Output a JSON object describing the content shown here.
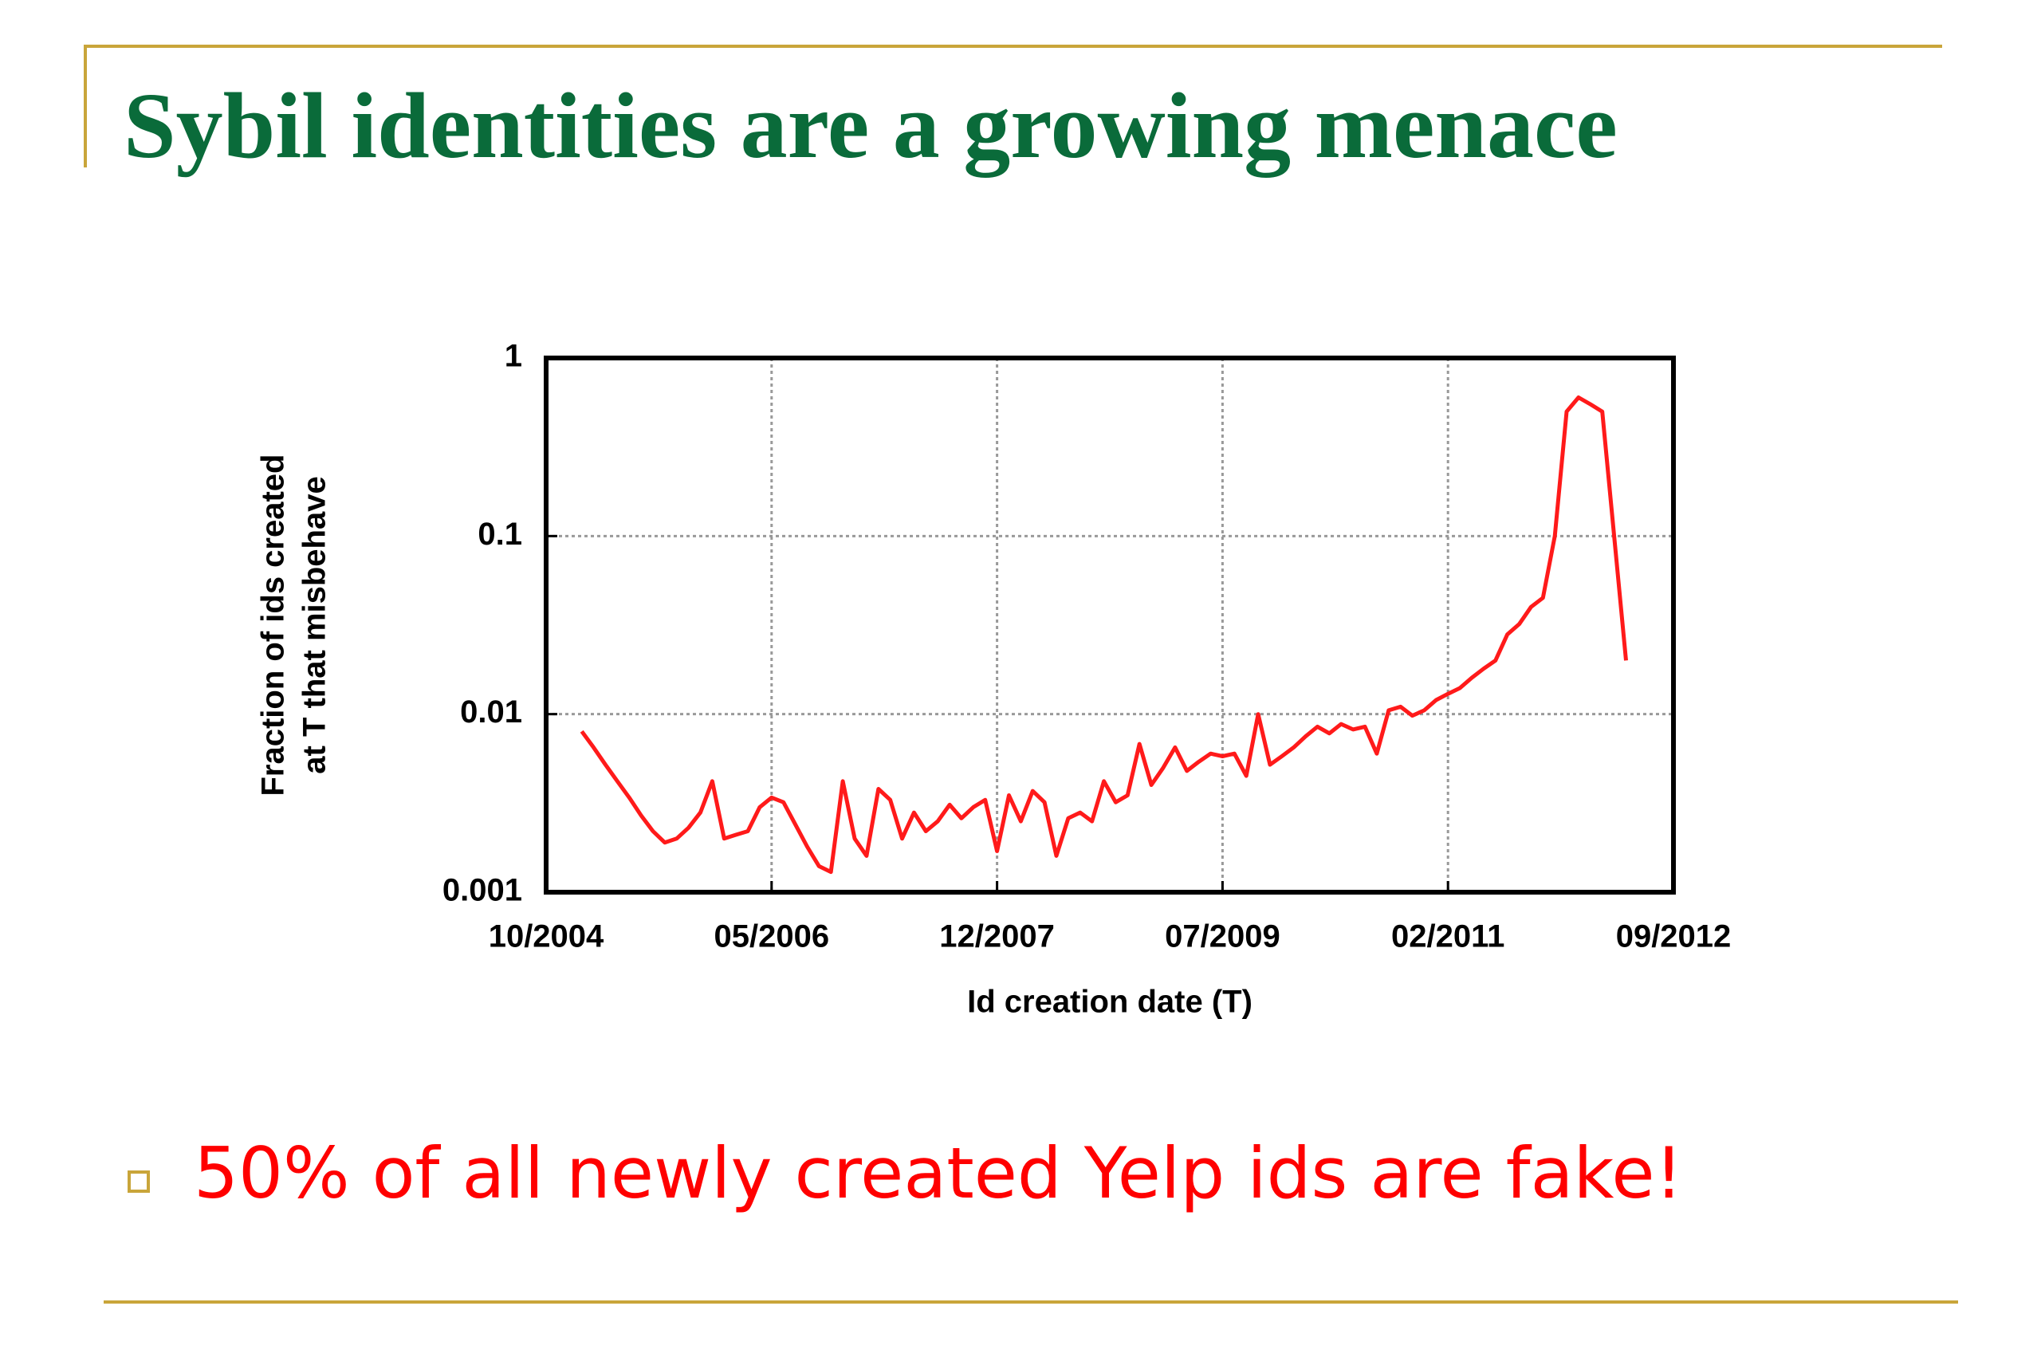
{
  "title": "Sybil identities are a growing menace",
  "bullet": "50% of all newly created Yelp ids are fake!",
  "chart_data": {
    "type": "line",
    "xlabel": "Id creation date (T)",
    "ylabel": [
      "Fraction of ids created",
      "at T that misbehave"
    ],
    "log_y": true,
    "grid": true,
    "xlim": [
      "2004-10",
      "2012-09"
    ],
    "xticks": [
      {
        "value": "2004-10",
        "label": "10/2004"
      },
      {
        "value": "2006-05",
        "label": "05/2006"
      },
      {
        "value": "2007-12",
        "label": "12/2007"
      },
      {
        "value": "2009-07",
        "label": "07/2009"
      },
      {
        "value": "2011-02",
        "label": "02/2011"
      },
      {
        "value": "2012-09",
        "label": "09/2012"
      }
    ],
    "ylim": [
      0.001,
      1
    ],
    "yticks": [
      0.001,
      0.01,
      0.1,
      1
    ],
    "x": [
      "2005-01",
      "2005-02",
      "2005-03",
      "2005-04",
      "2005-05",
      "2005-06",
      "2005-07",
      "2005-08",
      "2005-09",
      "2005-10",
      "2005-11",
      "2005-12",
      "2006-01",
      "2006-02",
      "2006-03",
      "2006-04",
      "2006-05",
      "2006-06",
      "2006-07",
      "2006-08",
      "2006-09",
      "2006-10",
      "2006-11",
      "2006-12",
      "2007-01",
      "2007-02",
      "2007-03",
      "2007-04",
      "2007-05",
      "2007-06",
      "2007-07",
      "2007-08",
      "2007-09",
      "2007-10",
      "2007-11",
      "2007-12",
      "2008-01",
      "2008-02",
      "2008-03",
      "2008-04",
      "2008-05",
      "2008-06",
      "2008-07",
      "2008-08",
      "2008-09",
      "2008-10",
      "2008-11",
      "2008-12",
      "2009-01",
      "2009-02",
      "2009-03",
      "2009-04",
      "2009-05",
      "2009-06",
      "2009-07",
      "2009-08",
      "2009-09",
      "2009-10",
      "2009-11",
      "2009-12",
      "2010-01",
      "2010-02",
      "2010-03",
      "2010-04",
      "2010-05",
      "2010-06",
      "2010-07",
      "2010-08",
      "2010-09",
      "2010-10",
      "2010-11",
      "2010-12",
      "2011-01",
      "2011-02",
      "2011-03",
      "2011-04",
      "2011-05",
      "2011-06",
      "2011-07",
      "2011-08",
      "2011-09",
      "2011-10",
      "2011-11",
      "2011-12",
      "2012-01",
      "2012-02",
      "2012-03",
      "2012-04",
      "2012-05"
    ],
    "series": [
      {
        "color": "#ff1a1a",
        "values": [
          0.008,
          0.0065,
          0.0052,
          0.0042,
          0.0034,
          0.0027,
          0.0022,
          0.0019,
          0.002,
          0.0023,
          0.0028,
          0.0042,
          0.002,
          0.0021,
          0.0022,
          0.003,
          0.0034,
          0.0032,
          0.0024,
          0.0018,
          0.0014,
          0.0013,
          0.0042,
          0.002,
          0.0016,
          0.0038,
          0.0033,
          0.002,
          0.0028,
          0.0022,
          0.0025,
          0.0031,
          0.0026,
          0.003,
          0.0033,
          0.0017,
          0.0035,
          0.0025,
          0.0037,
          0.0032,
          0.0016,
          0.0026,
          0.0028,
          0.0025,
          0.0042,
          0.0032,
          0.0035,
          0.0068,
          0.004,
          0.005,
          0.0065,
          0.0048,
          0.0054,
          0.006,
          0.0058,
          0.006,
          0.0045,
          0.01,
          0.0052,
          0.0058,
          0.0065,
          0.0075,
          0.0085,
          0.0078,
          0.0088,
          0.0082,
          0.0085,
          0.006,
          0.0105,
          0.011,
          0.0098,
          0.0105,
          0.012,
          0.013,
          0.014,
          0.016,
          0.018,
          0.02,
          0.028,
          0.032,
          0.04,
          0.045,
          0.1,
          0.5,
          0.6,
          0.55,
          0.5,
          0.1,
          0.02
        ]
      }
    ]
  }
}
